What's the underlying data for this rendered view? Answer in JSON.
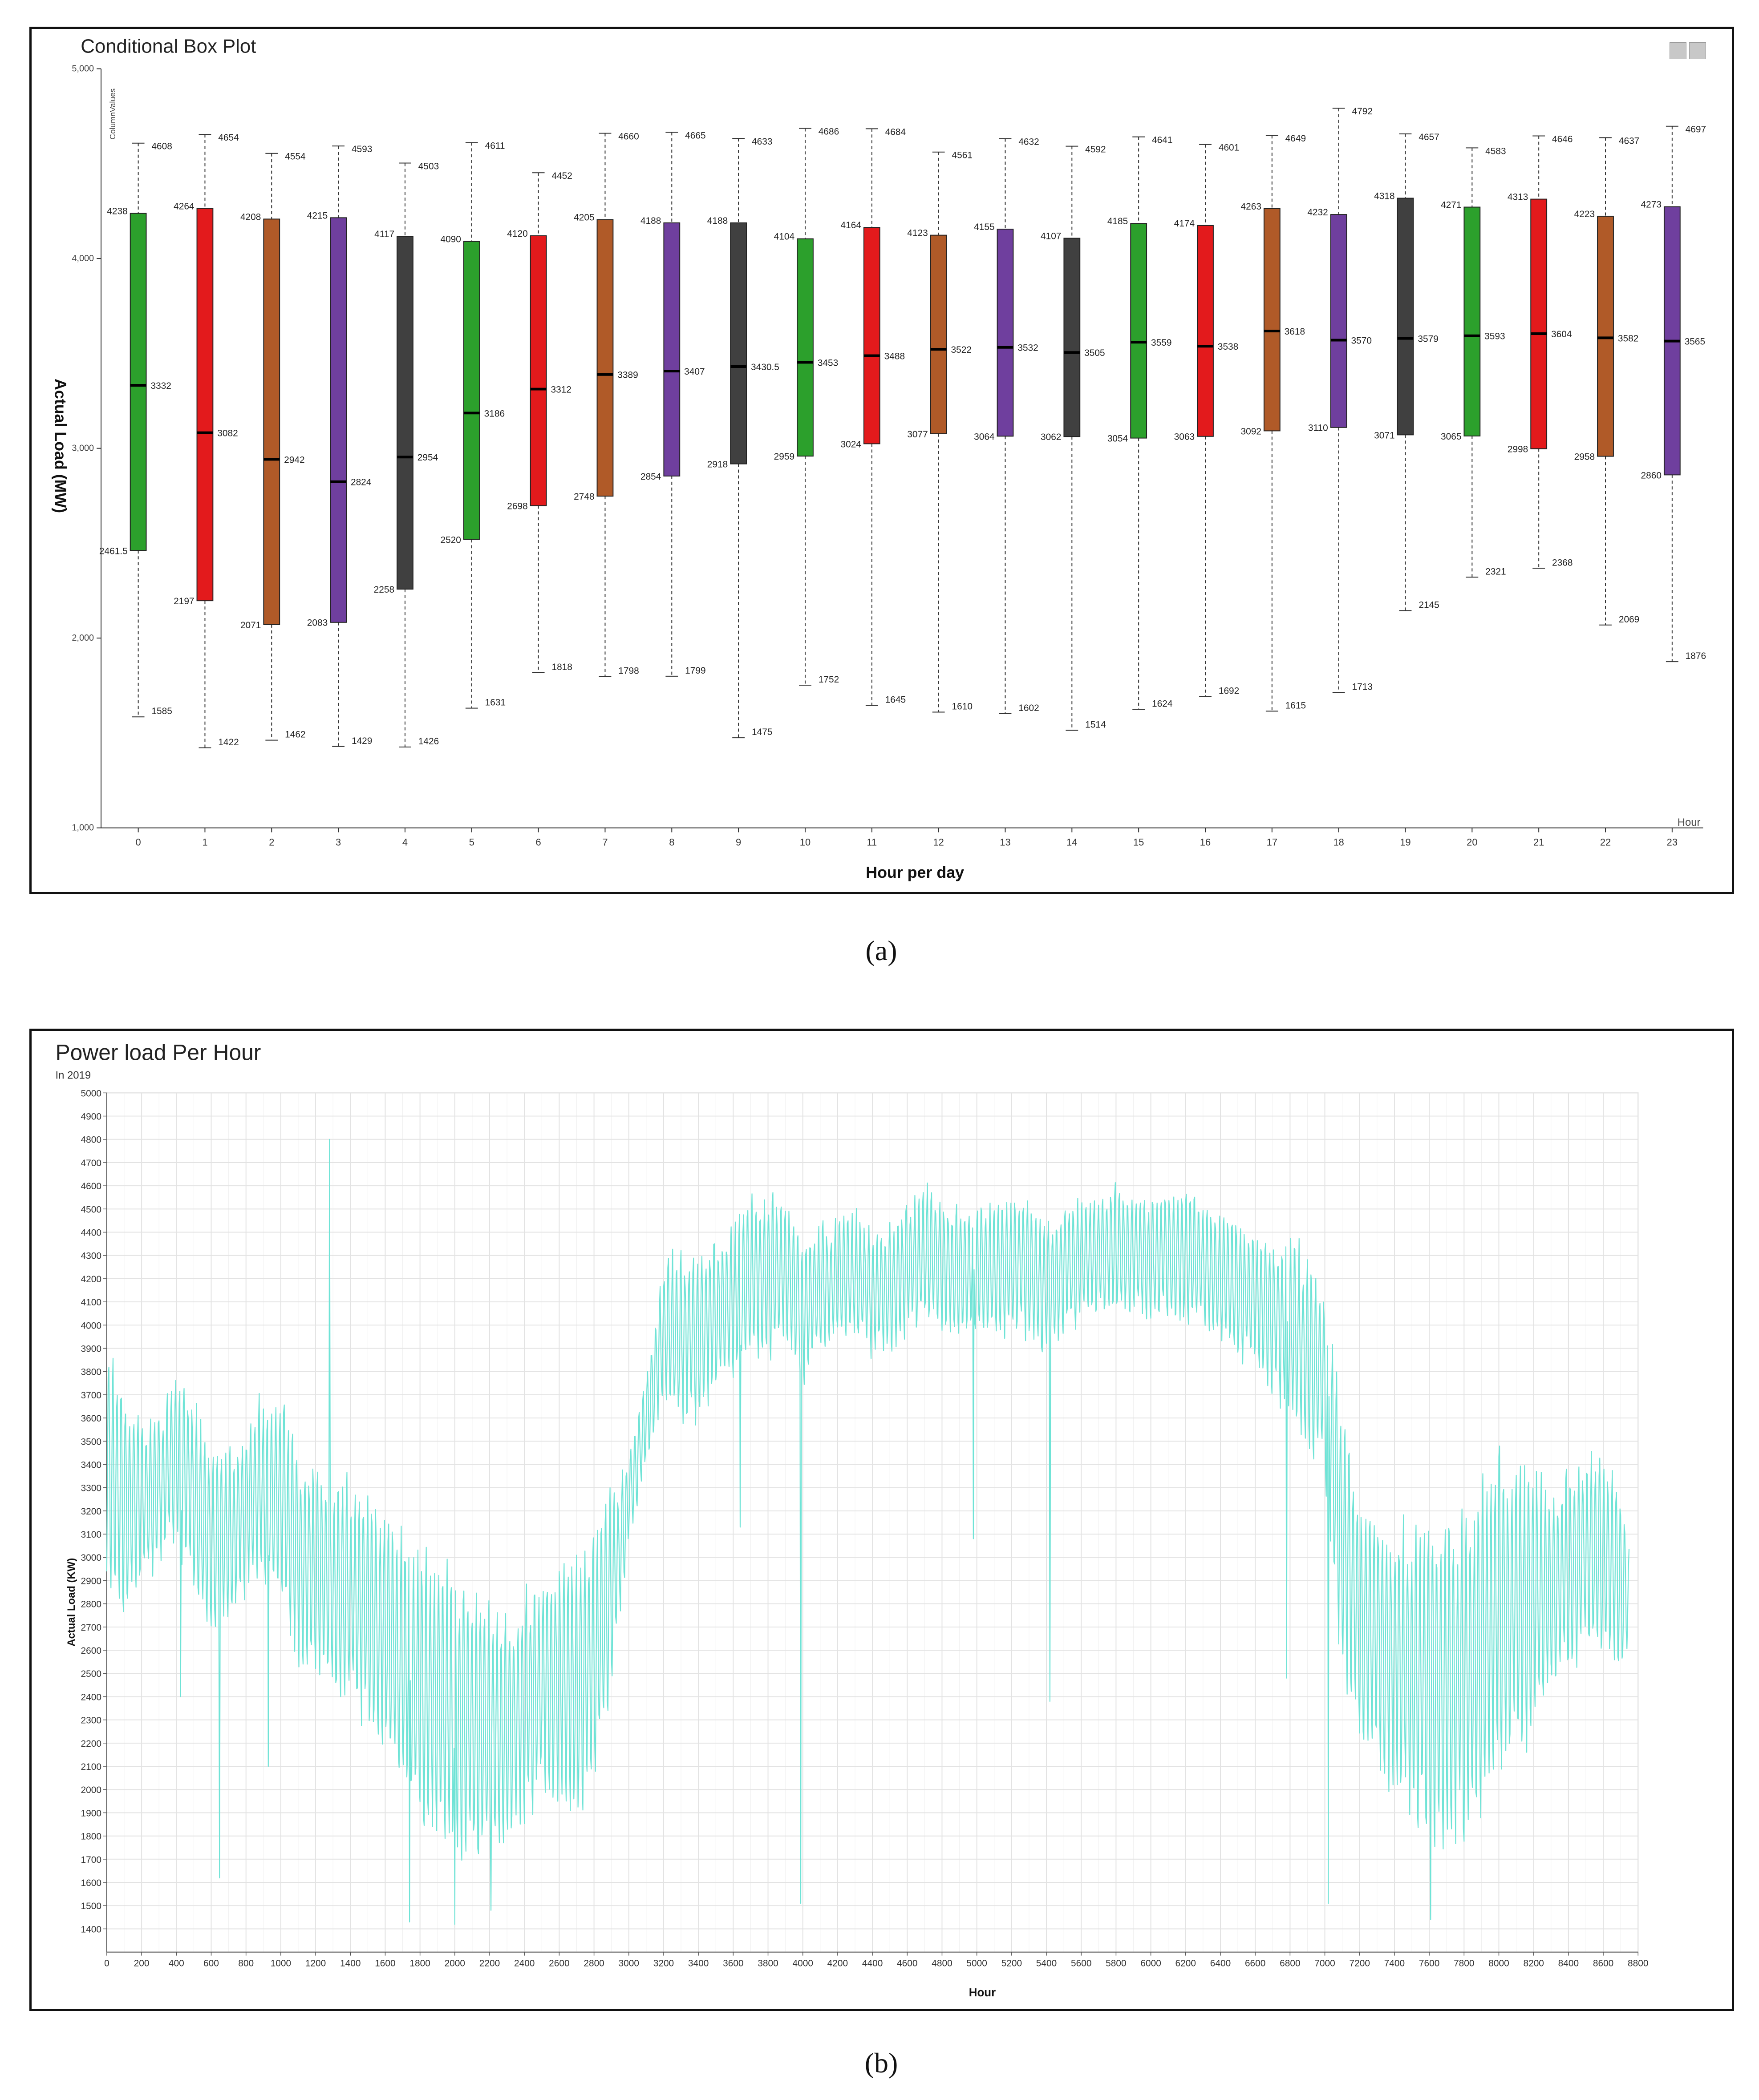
{
  "chart_data": [
    {
      "type": "box",
      "title": "Conditional Box Plot",
      "column_label": "ColumnValues",
      "xlabel": "Hour per day",
      "ylabel": "Actual Load (MW)",
      "x_axis_name": "Hour",
      "ylim": [
        1000,
        5000
      ],
      "y_ticks": [
        1000,
        2000,
        3000,
        4000,
        5000
      ],
      "y_tick_labels": [
        "1,000",
        "2,000",
        "3,000",
        "4,000",
        "5,000"
      ],
      "categories": [
        "0",
        "1",
        "2",
        "3",
        "4",
        "5",
        "6",
        "7",
        "8",
        "9",
        "10",
        "11",
        "12",
        "13",
        "14",
        "15",
        "16",
        "17",
        "18",
        "19",
        "20",
        "21",
        "22",
        "23"
      ],
      "whisker_high": [
        4608,
        4654,
        4554,
        4593,
        4503,
        4611,
        4452,
        4660,
        4665,
        4633,
        4686,
        4684,
        4561,
        4632,
        4592,
        4641,
        4601,
        4649,
        4792,
        4657,
        4583,
        4646,
        4637,
        4697
      ],
      "q3": [
        4238,
        4264,
        4208,
        4215,
        4117,
        4090,
        4120,
        4205,
        4188,
        4188,
        4104,
        4164,
        4123,
        4155,
        4107,
        4185,
        4174,
        4263,
        4232,
        4318,
        4271,
        4313,
        4223,
        4273
      ],
      "median": [
        3332,
        3082,
        2942,
        2824,
        2954,
        3186,
        3312,
        3389,
        3407,
        3430.5,
        3453,
        3488,
        3522,
        3532,
        3505,
        3559,
        3538,
        3618,
        3570,
        3579,
        3593,
        3604,
        3582,
        3565
      ],
      "q1": [
        2461.5,
        2197,
        2071,
        2083,
        2258,
        2520,
        2698,
        2748,
        2854,
        2918,
        2959,
        3024,
        3077,
        3064,
        3062,
        3054,
        3063,
        3092,
        3110,
        3071,
        3065,
        2998,
        2958,
        2860
      ],
      "whisker_low": [
        1585,
        1422,
        1462,
        1429,
        1426,
        1631,
        1818,
        1798,
        1799,
        1475,
        1752,
        1645,
        1610,
        1602,
        1514,
        1624,
        1692,
        1615,
        1713,
        2145,
        2321,
        2368,
        2069,
        1876
      ],
      "colors": [
        "#2ca02c",
        "#e31a1c",
        "#b05a28",
        "#6f3f9e",
        "#404040"
      ]
    },
    {
      "type": "line",
      "title": "Power load Per Hour",
      "subtitle": "In 2019",
      "xlabel": "Hour",
      "ylabel": "Actual Load (KW)",
      "xlim": [
        0,
        8800
      ],
      "ylim": [
        1300,
        5000
      ],
      "x_ticks": [
        0,
        200,
        400,
        600,
        800,
        1000,
        1200,
        1400,
        1600,
        1800,
        2000,
        2200,
        2400,
        2600,
        2800,
        3000,
        3200,
        3400,
        3600,
        3800,
        4000,
        4200,
        4400,
        4600,
        4800,
        5000,
        5200,
        5400,
        5600,
        5800,
        6000,
        6200,
        6400,
        6600,
        6800,
        7000,
        7200,
        7400,
        7600,
        7800,
        8000,
        8200,
        8400,
        8600,
        8800
      ],
      "y_ticks": [
        1400,
        1500,
        1600,
        1700,
        1800,
        1900,
        2000,
        2100,
        2200,
        2300,
        2400,
        2500,
        2600,
        2700,
        2800,
        2900,
        3000,
        3100,
        3200,
        3300,
        3400,
        3500,
        3600,
        3700,
        3800,
        3900,
        4000,
        4100,
        4200,
        4300,
        4400,
        4500,
        4600,
        4700,
        4800,
        4900,
        5000
      ],
      "grid": true,
      "line_color": "#6fe3d6",
      "envelope_x": [
        0,
        100,
        200,
        300,
        400,
        500,
        600,
        700,
        800,
        900,
        1000,
        1100,
        1200,
        1300,
        1400,
        1500,
        1600,
        1700,
        1800,
        1900,
        2000,
        2100,
        2200,
        2300,
        2400,
        2500,
        2600,
        2700,
        2800,
        2900,
        3000,
        3100,
        3200,
        3300,
        3400,
        3500,
        3600,
        3700,
        3800,
        3900,
        4000,
        4100,
        4200,
        4300,
        4400,
        4500,
        4600,
        4700,
        4800,
        4900,
        5000,
        5100,
        5200,
        5300,
        5400,
        5500,
        5600,
        5700,
        5800,
        5900,
        6000,
        6100,
        6200,
        6300,
        6400,
        6500,
        6600,
        6700,
        6800,
        6900,
        7000,
        7100,
        7200,
        7300,
        7400,
        7500,
        7600,
        7700,
        7800,
        7900,
        8000,
        8100,
        8200,
        8300,
        8400,
        8500,
        8600,
        8700,
        8750
      ],
      "envelope_high": [
        3900,
        3750,
        3600,
        3650,
        3800,
        3700,
        3450,
        3500,
        3600,
        3700,
        3750,
        3450,
        3400,
        3350,
        3350,
        3300,
        3250,
        3100,
        3050,
        3000,
        2950,
        2900,
        2800,
        2750,
        2850,
        2950,
        3000,
        3050,
        3100,
        3300,
        3450,
        3800,
        4250,
        4350,
        4300,
        4400,
        4450,
        4550,
        4600,
        4550,
        4400,
        4450,
        4450,
        4500,
        4400,
        4450,
        4550,
        4600,
        4550,
        4500,
        4550,
        4500,
        4550,
        4550,
        4450,
        4500,
        4550,
        4600,
        4600,
        4600,
        4550,
        4600,
        4600,
        4550,
        4500,
        4450,
        4400,
        4400,
        4400,
        4300,
        4200,
        3700,
        3250,
        3200,
        3150,
        3150,
        3150,
        3200,
        3200,
        3300,
        3550,
        3400,
        3450,
        3300,
        3400,
        3450,
        3500,
        3300,
        3050
      ],
      "envelope_low": [
        2900,
        2750,
        2850,
        2950,
        3100,
        2800,
        2650,
        2700,
        2850,
        2900,
        2800,
        2550,
        2450,
        2400,
        2350,
        2250,
        2150,
        1950,
        1800,
        1750,
        1700,
        1650,
        1700,
        1750,
        1850,
        1950,
        1900,
        1850,
        2000,
        2400,
        3050,
        3400,
        3700,
        3550,
        3600,
        3700,
        3750,
        3850,
        3850,
        3900,
        3750,
        3850,
        3900,
        3950,
        3850,
        3900,
        3950,
        4000,
        3950,
        3950,
        3950,
        3950,
        3950,
        3950,
        3850,
        3950,
        4000,
        4050,
        4000,
        4050,
        4000,
        4000,
        4000,
        3950,
        3900,
        3850,
        3800,
        3700,
        3600,
        3450,
        3300,
        2500,
        2200,
        2050,
        1950,
        1850,
        1750,
        1700,
        1750,
        1850,
        2000,
        2100,
        2250,
        2400,
        2500,
        2600,
        2550,
        2500,
        2550
      ],
      "spikes": [
        {
          "x": 1280,
          "y": 4800
        },
        {
          "x": 1740,
          "y": 1430
        },
        {
          "x": 2000,
          "y": 1420
        },
        {
          "x": 648,
          "y": 1620
        },
        {
          "x": 3990,
          "y": 1510
        },
        {
          "x": 5420,
          "y": 2380
        },
        {
          "x": 4980,
          "y": 3080
        },
        {
          "x": 3640,
          "y": 3130
        },
        {
          "x": 7610,
          "y": 1440
        },
        {
          "x": 7020,
          "y": 1510
        },
        {
          "x": 6780,
          "y": 2480
        },
        {
          "x": 425,
          "y": 2400
        },
        {
          "x": 930,
          "y": 2100
        },
        {
          "x": 2210,
          "y": 1480
        }
      ]
    }
  ],
  "captions": {
    "a": "(a)",
    "b": "(b)"
  }
}
